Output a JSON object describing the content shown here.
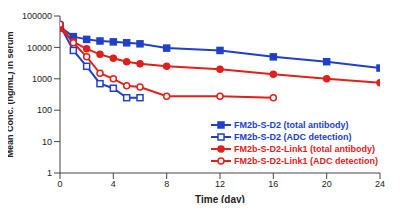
{
  "chart_data": {
    "type": "line",
    "x_label": "Time (day)",
    "y_label": "Mean Conc. (ng/mL) in serum",
    "log": "y",
    "grid": false,
    "legend": "lower right",
    "xlim": [
      0,
      24
    ],
    "xticks": [
      0,
      4,
      8,
      12,
      16,
      20,
      24
    ],
    "ylim": [
      1,
      100000
    ],
    "yticks": [
      1,
      10,
      100,
      1000,
      10000,
      100000
    ],
    "series": [
      {
        "name": "FM2b-S-D2 (total antibody)",
        "color": "#2040c8",
        "marker": "square",
        "x": [
          0,
          1,
          2,
          3,
          4,
          5,
          6,
          8,
          12,
          16,
          20,
          24
        ],
        "values": [
          45000,
          22000,
          18000,
          16000,
          15000,
          14000,
          13000,
          9500,
          8000,
          5000,
          3500,
          2200
        ]
      },
      {
        "name": "FM2b-S-D2 (ADC detection)",
        "color": "#2040c8",
        "marker": "open_square",
        "x": [
          0,
          1,
          2,
          3,
          4,
          5,
          6
        ],
        "values": [
          50000,
          8000,
          2500,
          700,
          500,
          250,
          250
        ]
      },
      {
        "name": "FM2b-S-D2-Link1 (total antibody)",
        "color": "#e0201b",
        "marker": "circle",
        "x": [
          0,
          1,
          2,
          3,
          4,
          5,
          6,
          8,
          12,
          16,
          20,
          24
        ],
        "values": [
          40000,
          15000,
          9000,
          6000,
          4500,
          3500,
          3000,
          2500,
          2000,
          1400,
          1000,
          750
        ]
      },
      {
        "name": "FM2b-S-D2-Link1 (ADC detection)",
        "color": "#e0201b",
        "marker": "open_circle",
        "x": [
          0,
          1,
          2,
          3,
          4,
          5,
          6,
          8,
          12,
          16
        ],
        "values": [
          55000,
          14000,
          5000,
          1500,
          1000,
          600,
          550,
          280,
          280,
          250
        ]
      }
    ]
  }
}
